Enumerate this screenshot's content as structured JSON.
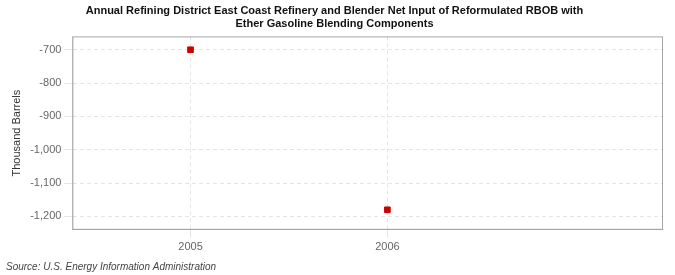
{
  "chart_data": {
    "type": "scatter",
    "title": "Annual Refining District East Coast Refinery and Blender Net Input of Reformulated RBOB with\nEther Gasoline Blending Components",
    "y_label": "Thousand Barrels",
    "annotation": "Source: U.S. Energy Information Administration",
    "x": [
      2005,
      2006
    ],
    "values": [
      -700,
      -1180
    ],
    "color": "#cc0000",
    "marker": "square",
    "xlim": [
      2004.4,
      2007.4
    ],
    "ylim": [
      -1240,
      -660
    ],
    "xticks": [
      2005,
      2006
    ],
    "yticks": [
      -700,
      -800,
      -900,
      {
        "value": -1000,
        "label": "-1,000"
      },
      {
        "value": -1100,
        "label": "-1,100"
      },
      {
        "value": -1200,
        "label": "-1,200"
      }
    ],
    "grid": true
  }
}
